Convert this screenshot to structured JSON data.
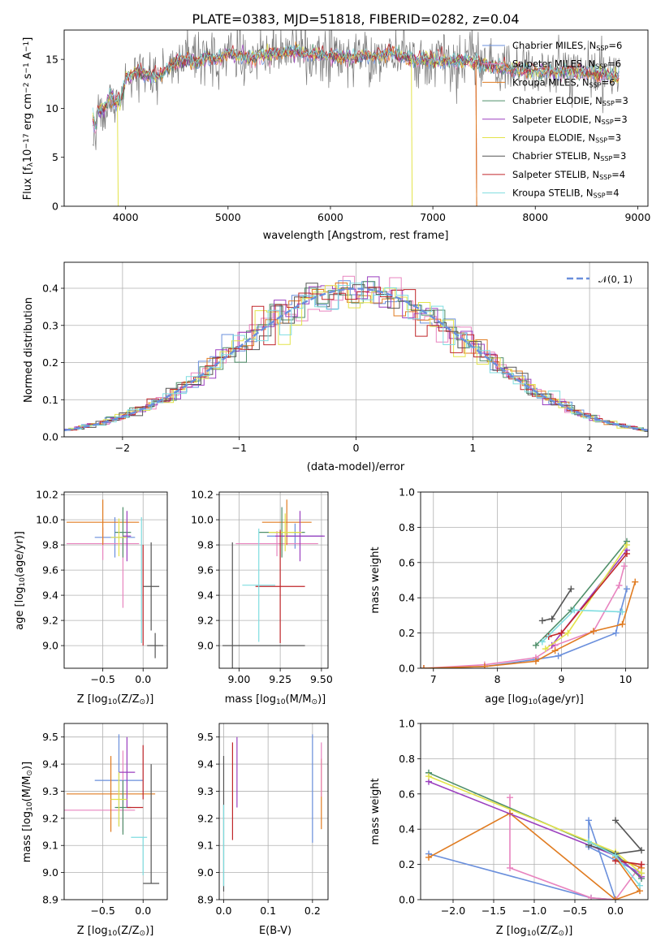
{
  "figure": {
    "title": "PLATE=0383, MJD=51818, FIBERID=0282, z=0.04"
  },
  "legend_spectrum": [
    {
      "name": "Chabrier MILES, N<sub>SSP</sub>=6",
      "label_main": "Chabrier MILES, N",
      "label_sub": "SSP",
      "label_tail": "=6",
      "color": "#6a8fdc"
    },
    {
      "name": "Salpeter MILES, N<sub>SSP</sub>=6",
      "label_main": "Salpeter MILES, N",
      "label_sub": "SSP",
      "label_tail": "=6",
      "color": "#e884bf"
    },
    {
      "name": "Kroupa MILES, N<sub>SSP</sub>=6",
      "label_main": "Kroupa MILES, N",
      "label_sub": "SSP",
      "label_tail": "=6",
      "color": "#e07b20"
    },
    {
      "name": "Chabrier ELODIE, N<sub>SSP</sub>=3",
      "label_main": "Chabrier ELODIE, N",
      "label_sub": "SSP",
      "label_tail": "=3",
      "color": "#4f8f6a"
    },
    {
      "name": "Salpeter ELODIE, N<sub>SSP</sub>=3",
      "label_main": "Salpeter ELODIE, N",
      "label_sub": "SSP",
      "label_tail": "=3",
      "color": "#9b3fbf"
    },
    {
      "name": "Kroupa ELODIE, N<sub>SSP</sub>=3",
      "label_main": "Kroupa ELODIE, N",
      "label_sub": "SSP",
      "label_tail": "=3",
      "color": "#e3e34a"
    },
    {
      "name": "Chabrier STELIB, N<sub>SSP</sub>=3",
      "label_main": "Chabrier STELIB, N",
      "label_sub": "SSP",
      "label_tail": "=3",
      "color": "#555555"
    },
    {
      "name": "Salpeter STELIB, N<sub>SSP</sub>=4",
      "label_main": "Salpeter STELIB, N",
      "label_sub": "SSP",
      "label_tail": "=4",
      "color": "#c0262a"
    },
    {
      "name": "Kroupa STELIB, N<sub>SSP</sub>=4",
      "label_main": "Kroupa STELIB, N",
      "label_sub": "SSP",
      "label_tail": "=4",
      "color": "#7fdde0"
    }
  ],
  "chart_data": [
    {
      "id": "spectrum",
      "type": "line",
      "xlabel": "wavelength [Angstrom, rest frame]",
      "ylabel_parts": [
        "Flux [f",
        "λ",
        "10",
        "−17",
        " erg cm",
        "−2",
        " s",
        "−1",
        " A",
        "−1",
        "]"
      ],
      "xlim": [
        3400,
        9100
      ],
      "ylim": [
        0,
        18
      ],
      "xticks": [
        4000,
        5000,
        6000,
        7000,
        8000,
        9000
      ],
      "yticks": [
        0,
        5,
        10,
        15
      ],
      "grid": false,
      "data_color": "#777777",
      "continuum": {
        "x": [
          3680,
          3700,
          3720,
          3760,
          3800,
          3850,
          3900,
          3950,
          4000,
          4100,
          4200,
          4300,
          4400,
          4500,
          4600,
          4700,
          4800,
          4900,
          5000,
          5200,
          5400,
          5600,
          5800,
          6000,
          6200,
          6400,
          6600,
          6800,
          7000,
          7200,
          7400,
          7600,
          7800,
          8000,
          8200,
          8400,
          8600,
          8800
        ],
        "y": [
          10.5,
          9.8,
          10.0,
          9.5,
          10.2,
          11.5,
          10.5,
          10.8,
          13.0,
          13.8,
          13.5,
          13.2,
          14.0,
          14.8,
          15.0,
          14.7,
          15.2,
          15.0,
          15.6,
          15.2,
          15.5,
          15.8,
          15.5,
          15.4,
          15.2,
          15.3,
          15.6,
          15.0,
          14.9,
          14.8,
          14.8,
          14.2,
          14.0,
          13.8,
          13.6,
          13.8,
          13.5,
          13.2
        ]
      },
      "model_drops": [
        {
          "series": "Kroupa ELODIE",
          "x": 3920
        },
        {
          "series": "Kroupa ELODIE",
          "x": 6790
        },
        {
          "series": "Salpeter STELIB",
          "x": 7420
        },
        {
          "series": "Kroupa MILES",
          "x": 7420
        }
      ]
    },
    {
      "id": "residuals",
      "type": "histogram",
      "xlabel": "(data-model)/error",
      "ylabel": "Normed distribution",
      "xlim": [
        -2.5,
        2.5
      ],
      "ylim": [
        0,
        0.47
      ],
      "xticks": [
        -2,
        -1,
        0,
        1,
        2
      ],
      "yticks": [
        0.0,
        0.1,
        0.2,
        0.3,
        0.4
      ],
      "grid": true,
      "bin_width": 0.1,
      "reference": {
        "label_parts": [
          "𝒩",
          "(0, 1)"
        ],
        "color": "#6a8fdc",
        "style": "dashed"
      }
    },
    {
      "id": "z_age",
      "type": "errorbar",
      "xlabel_parts": [
        "Z [log",
        "10",
        "(Z/Z",
        "⊙",
        ")]"
      ],
      "ylabel_parts": [
        "age  [log",
        "10",
        "(age/yr)]"
      ],
      "xlim": [
        -0.98,
        0.3
      ],
      "ylim": [
        8.82,
        10.22
      ],
      "xticks": [
        -0.5,
        0.0
      ],
      "yticks": [
        9.0,
        9.2,
        9.4,
        9.6,
        9.8,
        10.0,
        10.2
      ],
      "grid": true,
      "points": [
        {
          "series": "Chabrier MILES",
          "x": -0.35,
          "y": 9.86,
          "xerr": 0.25,
          "yerr": 0.16
        },
        {
          "series": "Salpeter MILES",
          "x": -0.5,
          "y": 9.81,
          "xerr": 0.45,
          "yerr": 0.13
        },
        {
          "series": "Salpeter MILES",
          "x": -0.25,
          "y": 9.58,
          "xerr": 0.0,
          "yerr": 0.28
        },
        {
          "series": "Kroupa MILES",
          "x": -0.5,
          "y": 9.98,
          "xerr": 0.45,
          "yerr": 0.18
        },
        {
          "series": "Chabrier ELODIE",
          "x": -0.25,
          "y": 9.9,
          "xerr": 0.1,
          "yerr": 0.2
        },
        {
          "series": "Salpeter ELODIE",
          "x": -0.2,
          "y": 9.87,
          "xerr": 0.05,
          "yerr": 0.2
        },
        {
          "series": "Kroupa ELODIE",
          "x": -0.3,
          "y": 9.86,
          "xerr": 0.1,
          "yerr": 0.15
        },
        {
          "series": "Chabrier STELIB",
          "x": 0.1,
          "y": 9.47,
          "xerr": 0.1,
          "yerr": 0.35
        },
        {
          "series": "Chabrier STELIB",
          "x": 0.15,
          "y": 9.0,
          "xerr": 0.1,
          "yerr": 0.1
        },
        {
          "series": "Salpeter STELIB",
          "x": 0.0,
          "y": 9.4,
          "xerr": 0.0,
          "yerr": 0.4
        },
        {
          "series": "Kroupa STELIB",
          "x": -0.02,
          "y": 9.52,
          "xerr": 0.0,
          "yerr": 0.5
        }
      ]
    },
    {
      "id": "mass_age",
      "type": "errorbar",
      "xlabel_parts": [
        "mass [log",
        "10",
        "(M/M",
        "⊙",
        ")]"
      ],
      "ylabel": "",
      "xlim": [
        8.88,
        9.54
      ],
      "ylim": [
        8.82,
        10.22
      ],
      "xticks": [
        9.0,
        9.25,
        9.5
      ],
      "xtick_labels": [
        "9.00",
        "9.25",
        "9.50"
      ],
      "yticks": [
        9.0,
        9.2,
        9.4,
        9.6,
        9.8,
        10.0,
        10.2
      ],
      "grid": true,
      "points": [
        {
          "series": "Chabrier MILES",
          "x": 9.34,
          "y": 9.87,
          "xerr": 0.17,
          "yerr": 0.1
        },
        {
          "series": "Salpeter MILES",
          "x": 9.23,
          "y": 9.81,
          "xerr": 0.25,
          "yerr": 0.1
        },
        {
          "series": "Kroupa MILES",
          "x": 9.29,
          "y": 9.98,
          "xerr": 0.15,
          "yerr": 0.18
        },
        {
          "series": "Chabrier ELODIE",
          "x": 9.26,
          "y": 9.9,
          "xerr": 0.14,
          "yerr": 0.2
        },
        {
          "series": "Salpeter ELODIE",
          "x": 9.37,
          "y": 9.87,
          "xerr": 0.15,
          "yerr": 0.2
        },
        {
          "series": "Kroupa ELODIE",
          "x": 9.28,
          "y": 9.9,
          "xerr": 0.1,
          "yerr": 0.15
        },
        {
          "series": "Chabrier STELIB",
          "x": 9.15,
          "y": 9.0,
          "xerr": 0.25,
          "yerr": 0.0
        },
        {
          "series": "Chabrier STELIB",
          "x": 8.96,
          "y": 9.0,
          "xerr": 0.0,
          "yerr": 0.82
        },
        {
          "series": "Salpeter STELIB",
          "x": 9.25,
          "y": 9.47,
          "xerr": 0.15,
          "yerr": 0.45
        },
        {
          "series": "Kroupa STELIB",
          "x": 9.12,
          "y": 9.48,
          "xerr": 0.1,
          "yerr": 0.45
        }
      ]
    },
    {
      "id": "age_weight",
      "type": "line",
      "xlabel_parts": [
        "age  [log",
        "10",
        "(age/yr)]"
      ],
      "ylabel": "mass weight",
      "xlim": [
        6.8,
        10.35
      ],
      "ylim": [
        0,
        1
      ],
      "xticks": [
        7,
        8,
        9,
        10
      ],
      "yticks": [
        0.0,
        0.2,
        0.4,
        0.6,
        0.8,
        1.0
      ],
      "grid": true,
      "series": [
        {
          "name": "Chabrier MILES",
          "x": [
            6.85,
            7.8,
            8.6,
            8.95,
            9.85,
            9.92,
            10.02
          ],
          "y": [
            0.0,
            0.01,
            0.05,
            0.07,
            0.2,
            0.32,
            0.45
          ]
        },
        {
          "name": "Salpeter MILES",
          "x": [
            6.85,
            7.8,
            8.6,
            8.9,
            9.5,
            9.9,
            9.98
          ],
          "y": [
            0.0,
            0.02,
            0.06,
            0.13,
            0.21,
            0.47,
            0.58
          ]
        },
        {
          "name": "Kroupa MILES",
          "x": [
            6.85,
            7.8,
            8.6,
            8.9,
            9.5,
            9.95,
            10.15
          ],
          "y": [
            0.0,
            0.01,
            0.04,
            0.1,
            0.21,
            0.25,
            0.49
          ]
        },
        {
          "name": "Chabrier ELODIE",
          "x": [
            8.6,
            9.15,
            10.02
          ],
          "y": [
            0.13,
            0.33,
            0.72
          ]
        },
        {
          "name": "Salpeter ELODIE",
          "x": [
            8.85,
            9.0,
            10.02
          ],
          "y": [
            0.13,
            0.2,
            0.67
          ]
        },
        {
          "name": "Kroupa ELODIE",
          "x": [
            8.75,
            9.1,
            10.02
          ],
          "y": [
            0.11,
            0.2,
            0.7
          ]
        },
        {
          "name": "Chabrier STELIB",
          "x": [
            8.7,
            8.85,
            9.15
          ],
          "y": [
            0.27,
            0.28,
            0.45
          ]
        },
        {
          "name": "Salpeter STELIB",
          "x": [
            8.8,
            9.0,
            10.02
          ],
          "y": [
            0.18,
            0.2,
            0.65
          ]
        },
        {
          "name": "Kroupa STELIB",
          "x": [
            8.7,
            9.2,
            9.95
          ],
          "y": [
            0.15,
            0.33,
            0.32
          ]
        }
      ]
    },
    {
      "id": "z_mass",
      "type": "errorbar",
      "xlabel_parts": [
        "Z [log",
        "10",
        "(Z/Z",
        "⊙",
        ")]"
      ],
      "ylabel_parts": [
        "mass [log",
        "10",
        "(M/M",
        "⊙",
        ")]"
      ],
      "xlim": [
        -0.98,
        0.3
      ],
      "ylim": [
        8.9,
        9.55
      ],
      "xticks": [
        -0.5,
        0.0
      ],
      "yticks": [
        8.9,
        9.0,
        9.1,
        9.2,
        9.3,
        9.4,
        9.5
      ],
      "grid": true,
      "points": [
        {
          "series": "Chabrier MILES",
          "x": -0.3,
          "y": 9.34,
          "xerr": 0.3,
          "yerr": 0.17
        },
        {
          "series": "Salpeter MILES",
          "x": -0.55,
          "y": 9.23,
          "xerr": 0.45,
          "yerr": 0.0
        },
        {
          "series": "Salpeter MILES",
          "x": -0.25,
          "y": 9.3,
          "xerr": 0.0,
          "yerr": 0.15
        },
        {
          "series": "Kroupa MILES",
          "x": -0.4,
          "y": 9.29,
          "xerr": 0.55,
          "yerr": 0.14
        },
        {
          "series": "Chabrier ELODIE",
          "x": -0.25,
          "y": 9.24,
          "xerr": 0.1,
          "yerr": 0.1
        },
        {
          "series": "Salpeter ELODIE",
          "x": -0.2,
          "y": 9.37,
          "xerr": 0.1,
          "yerr": 0.13
        },
        {
          "series": "Kroupa ELODIE",
          "x": -0.3,
          "y": 9.27,
          "xerr": 0.1,
          "yerr": 0.1
        },
        {
          "series": "Chabrier STELIB",
          "x": 0.1,
          "y": 8.96,
          "xerr": 0.1,
          "yerr": 0.0
        },
        {
          "series": "Chabrier STELIB",
          "x": 0.1,
          "y": 9.18,
          "xerr": 0.0,
          "yerr": 0.22
        },
        {
          "series": "Salpeter STELIB",
          "x": -0.1,
          "y": 9.24,
          "xerr": 0.1,
          "yerr": 0.0
        },
        {
          "series": "Salpeter STELIB",
          "x": 0.0,
          "y": 9.37,
          "xerr": 0.0,
          "yerr": 0.1
        },
        {
          "series": "Kroupa STELIB",
          "x": -0.05,
          "y": 9.13,
          "xerr": 0.1,
          "yerr": 0.0
        },
        {
          "series": "Kroupa STELIB",
          "x": 0.0,
          "y": 9.06,
          "xerr": 0.0,
          "yerr": 0.07
        }
      ]
    },
    {
      "id": "ebv_mass",
      "type": "errorbar",
      "xlabel": "E(B-V)",
      "ylabel": "",
      "xlim": [
        -0.01,
        0.235
      ],
      "ylim": [
        8.9,
        9.55
      ],
      "xticks": [
        0.0,
        0.1,
        0.2
      ],
      "yticks": [
        8.9,
        9.0,
        9.1,
        9.2,
        9.3,
        9.4,
        9.5
      ],
      "grid": true,
      "points": [
        {
          "series": "Chabrier MILES",
          "x": 0.2,
          "y": 9.31,
          "xerr": 0,
          "yerr": 0.2
        },
        {
          "series": "Kroupa MILES",
          "x": 0.22,
          "y": 9.29,
          "xerr": 0,
          "yerr": 0.13
        },
        {
          "series": "Salpeter MILES",
          "x": 0.22,
          "y": 9.38,
          "xerr": 0,
          "yerr": 0.1
        },
        {
          "series": "Salpeter ELODIE",
          "x": 0.03,
          "y": 9.37,
          "xerr": 0,
          "yerr": 0.13
        },
        {
          "series": "Salpeter STELIB",
          "x": 0.02,
          "y": 9.3,
          "xerr": 0,
          "yerr": 0.18
        },
        {
          "series": "Chabrier STELIB",
          "x": 0.0,
          "y": 9.18,
          "xerr": 0,
          "yerr": 0.25
        },
        {
          "series": "Kroupa STELIB",
          "x": 0.0,
          "y": 9.1,
          "xerr": 0,
          "yerr": 0.15
        }
      ]
    },
    {
      "id": "z_weight",
      "type": "line",
      "xlabel_parts": [
        "Z [log",
        "10",
        "(Z/Z",
        "⊙",
        ")]"
      ],
      "ylabel": "mass weight",
      "xlim": [
        -2.4,
        0.4
      ],
      "ylim": [
        0,
        1
      ],
      "xticks": [
        -2.0,
        -1.5,
        -1.0,
        -0.5,
        0.0
      ],
      "yticks": [
        0.0,
        0.2,
        0.4,
        0.6,
        0.8,
        1.0
      ],
      "grid": true,
      "series": [
        {
          "name": "Chabrier MILES",
          "x": [
            -2.3,
            -0.3,
            0.0,
            -0.33,
            -0.33,
            0.32
          ],
          "y": [
            0.26,
            0.01,
            0.0,
            0.45,
            0.3,
            0.15
          ]
        },
        {
          "name": "Salpeter MILES",
          "x": [
            -1.3,
            -1.3,
            -0.3,
            0.0,
            0.32
          ],
          "y": [
            0.58,
            0.18,
            0.01,
            0.0,
            0.2
          ]
        },
        {
          "name": "Kroupa MILES",
          "x": [
            -2.3,
            -1.3,
            0.0,
            0.3,
            0.0,
            0.32
          ],
          "y": [
            0.24,
            0.49,
            0.0,
            0.05,
            0.24,
            0.18
          ]
        },
        {
          "name": "Chabrier ELODIE",
          "x": [
            -2.3,
            0.0,
            0.32
          ],
          "y": [
            0.72,
            0.26,
            0.12
          ]
        },
        {
          "name": "Salpeter ELODIE",
          "x": [
            -2.3,
            0.0,
            0.32
          ],
          "y": [
            0.67,
            0.25,
            0.13
          ]
        },
        {
          "name": "Kroupa ELODIE",
          "x": [
            -2.3,
            0.0,
            0.32
          ],
          "y": [
            0.7,
            0.27,
            0.15
          ]
        },
        {
          "name": "Chabrier STELIB",
          "x": [
            0.0,
            0.32,
            0.0,
            -0.33
          ],
          "y": [
            0.45,
            0.28,
            0.26,
            0.31
          ]
        },
        {
          "name": "Salpeter STELIB",
          "x": [
            0.0,
            0.32
          ],
          "y": [
            0.22,
            0.2
          ]
        },
        {
          "name": "Kroupa STELIB",
          "x": [
            -0.33,
            0.0,
            0.3
          ],
          "y": [
            0.33,
            0.25,
            0.08
          ]
        }
      ]
    }
  ]
}
